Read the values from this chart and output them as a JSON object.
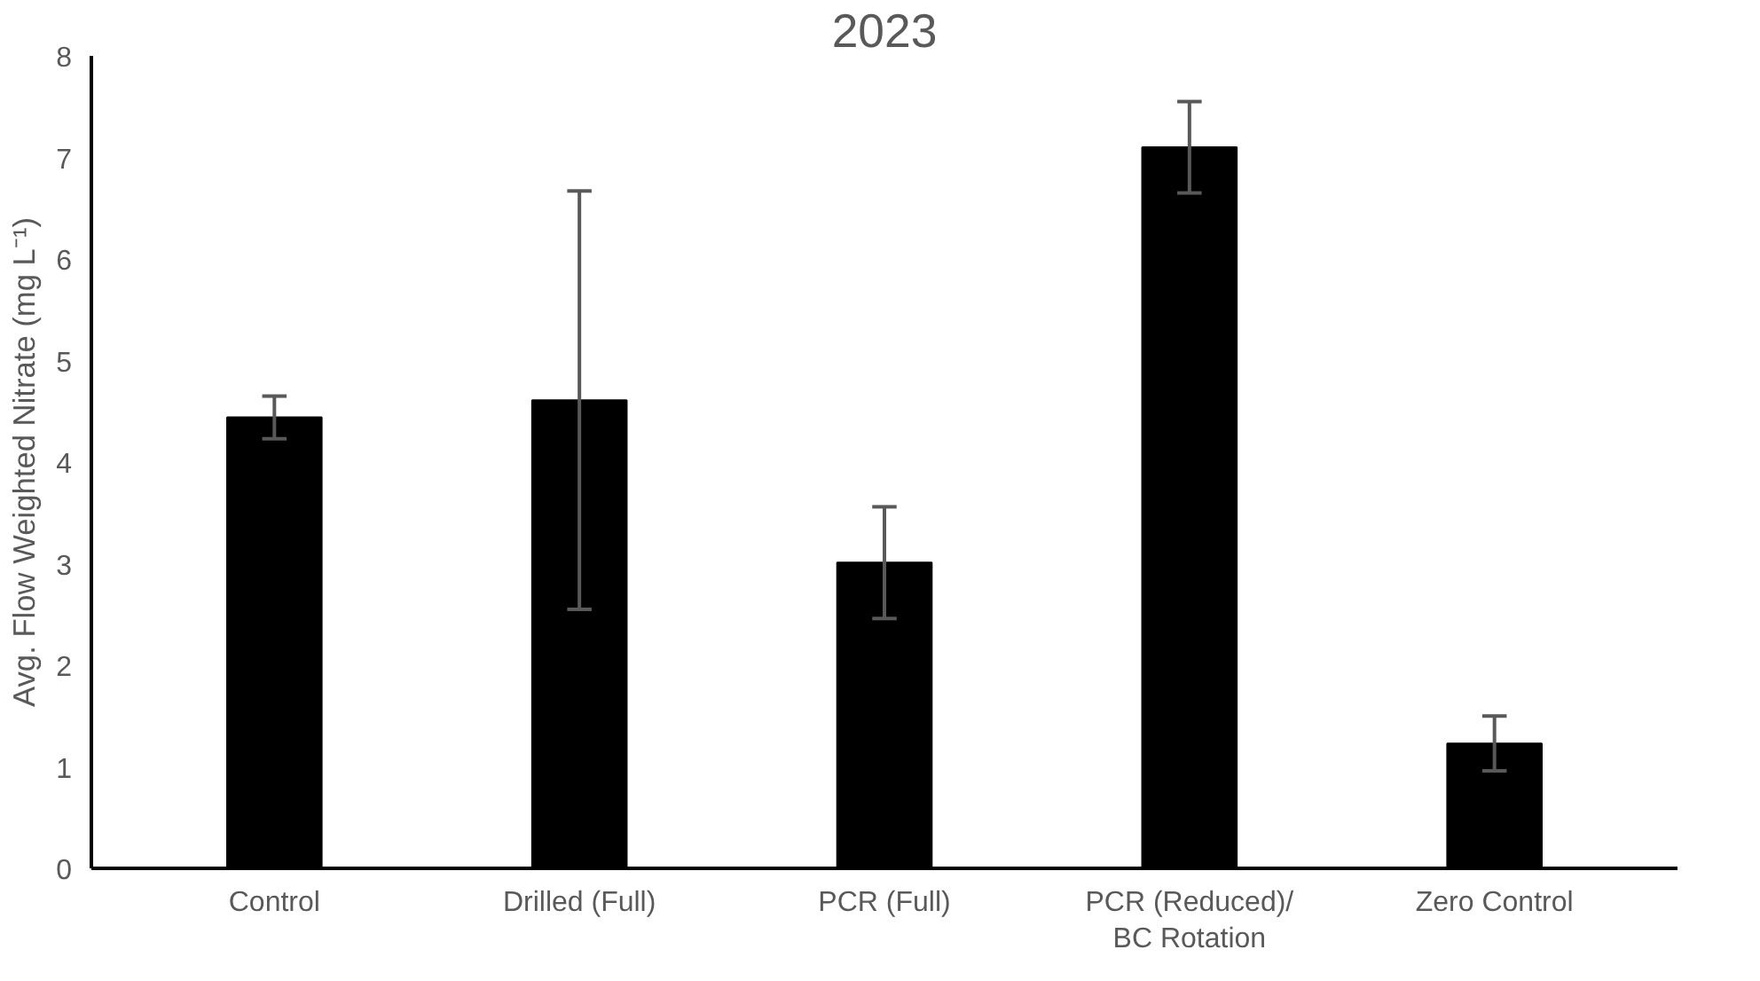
{
  "chart_data": {
    "type": "bar",
    "title": "2023",
    "ylabel": "Avg. Flow Weighted Nitrate (mg L⁻¹)",
    "categories": [
      "Control",
      "Drilled (Full)",
      "PCR (Full)",
      "PCR (Reduced)/\nBC Rotation",
      "Zero Control"
    ],
    "values": [
      4.44,
      4.61,
      3.01,
      7.1,
      1.23
    ],
    "errors": [
      0.21,
      2.06,
      0.55,
      0.45,
      0.27
    ],
    "color": "#000000",
    "ylim": [
      0,
      8
    ],
    "yticks": [
      0,
      1,
      2,
      3,
      4,
      5,
      6,
      7,
      8
    ],
    "grid": false
  }
}
